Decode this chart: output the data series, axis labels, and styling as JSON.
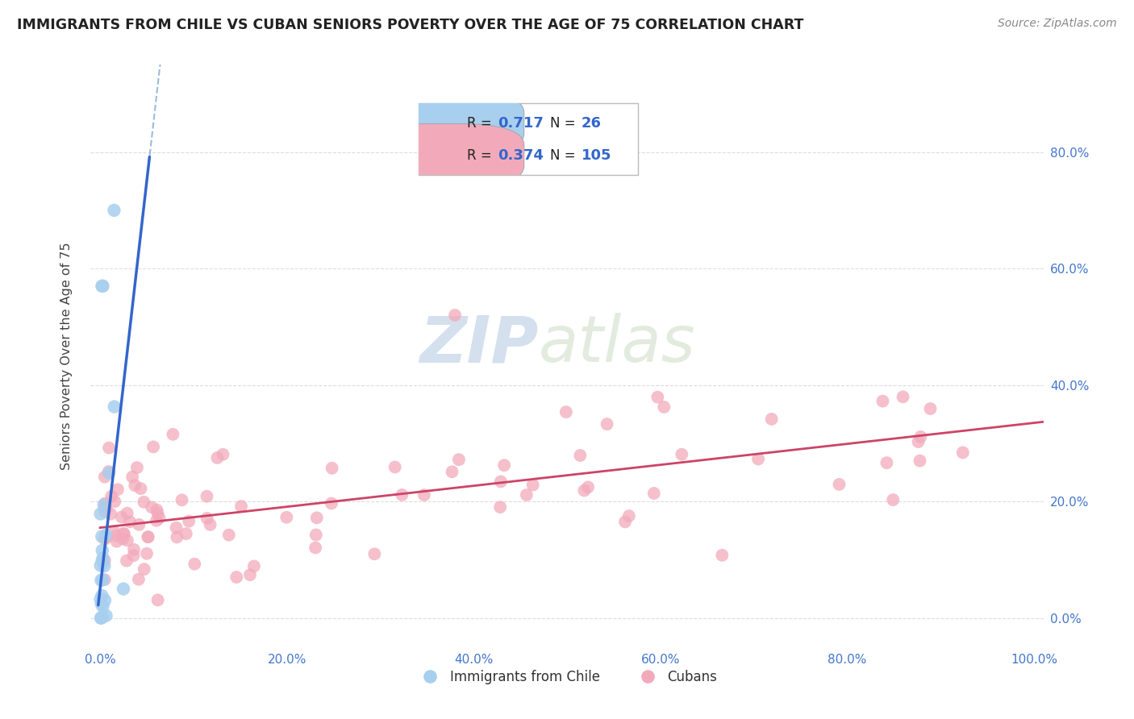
{
  "title": "IMMIGRANTS FROM CHILE VS CUBAN SENIORS POVERTY OVER THE AGE OF 75 CORRELATION CHART",
  "source": "Source: ZipAtlas.com",
  "ylabel": "Seniors Poverty Over the Age of 75",
  "xlim": [
    -0.01,
    1.01
  ],
  "ylim": [
    -0.05,
    0.95
  ],
  "xticks": [
    0.0,
    0.2,
    0.4,
    0.6,
    0.8,
    1.0
  ],
  "xticklabels": [
    "0.0%",
    "20.0%",
    "40.0%",
    "60.0%",
    "80.0%",
    "100.0%"
  ],
  "yticks": [
    0.0,
    0.2,
    0.4,
    0.6,
    0.8
  ],
  "yticklabels_right": [
    "0.0%",
    "20.0%",
    "40.0%",
    "60.0%",
    "80.0%"
  ],
  "legend_R1": "0.717",
  "legend_N1": "26",
  "legend_R2": "0.374",
  "legend_N2": "105",
  "legend_label1": "Immigrants from Chile",
  "legend_label2": "Cubans",
  "color_chile": "#A8CFEE",
  "color_cuban": "#F2AABB",
  "line_color_chile": "#3366CC",
  "line_color_chile_dash": "#99BBDD",
  "line_color_cuban": "#CC4466",
  "watermark_color": "#CCDDF0",
  "background_color": "#FFFFFF",
  "grid_color": "#DDDDDD",
  "title_color": "#222222",
  "source_color": "#888888",
  "tick_color": "#4477CC",
  "legend_text_color": "#222222",
  "legend_value_color": "#3366CC",
  "chile_line_m": 14.0,
  "chile_line_b": 0.05,
  "cuban_line_m": 0.18,
  "cuban_line_b": 0.155
}
